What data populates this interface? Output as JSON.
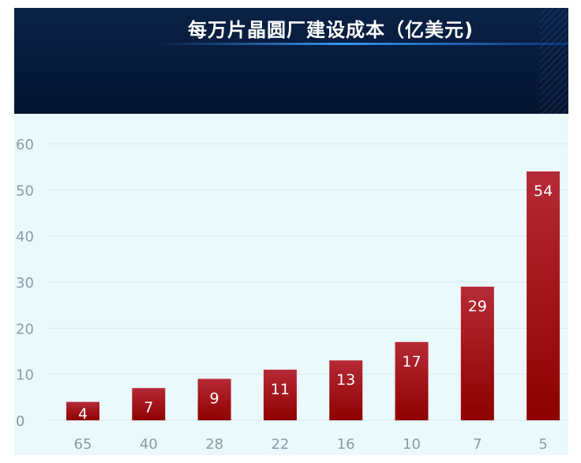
{
  "header": {
    "title": "每万片晶圆厂建设成本（亿美元)"
  },
  "chart_data": {
    "type": "bar",
    "title": "每万片晶圆厂建设成本（亿美元)",
    "xlabel": "",
    "ylabel": "",
    "categories": [
      "65",
      "40",
      "28",
      "22",
      "16",
      "10",
      "7",
      "5"
    ],
    "values": [
      4,
      7,
      9,
      11,
      13,
      17,
      29,
      54
    ],
    "ylim": [
      0,
      60
    ],
    "yticks": [
      "0",
      "10",
      "20",
      "30",
      "40",
      "50",
      "60"
    ],
    "grid": true,
    "legend": "none",
    "colors": {
      "bar_top": "#b52a35",
      "bar_bottom": "#8f0000",
      "header_bg": "#071a3b",
      "plot_bg": "#eaf9fb"
    }
  }
}
